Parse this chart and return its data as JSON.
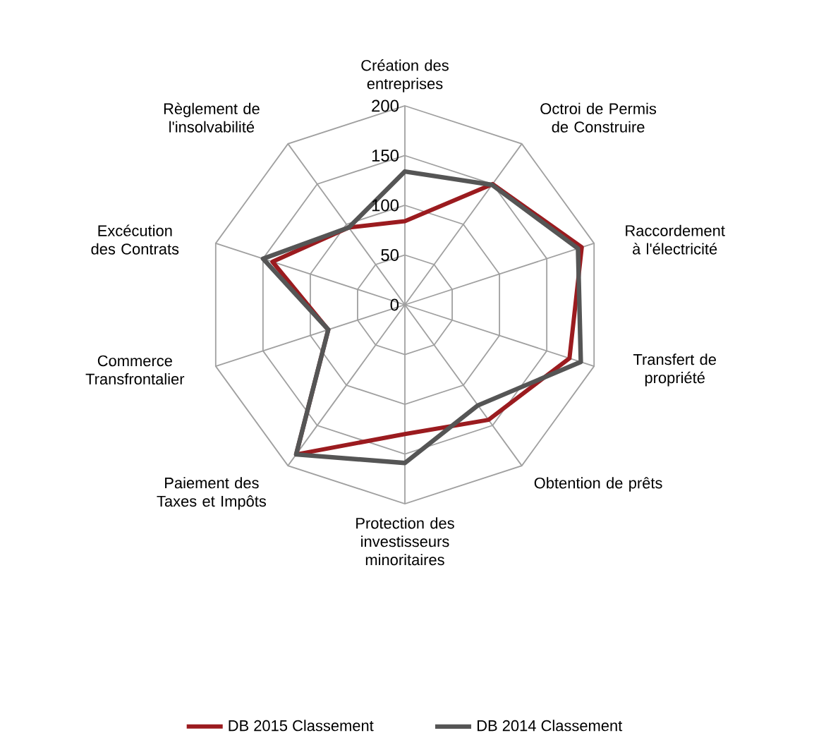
{
  "chart_data": {
    "type": "radar",
    "categories": [
      "Création des entreprises",
      "Octroi de Permis de Construire",
      "Raccordement à l'électricité",
      "Transfert de propriété",
      "Obtention de prêts",
      "Protection des investisseurs minoritaires",
      "Paiement des Taxes et Impôts",
      "Commerce Transfrontalier",
      "Excécution des Contrats",
      "Règlement de l'insolvabilité"
    ],
    "series": [
      {
        "name": "DB 2015 Classement",
        "color": "#9b1b1f",
        "values": [
          84,
          150,
          187,
          174,
          143,
          130,
          186,
          81,
          140,
          96
        ]
      },
      {
        "name": "DB 2014 Classement",
        "color": "#555555",
        "values": [
          134,
          149,
          183,
          186,
          125,
          159,
          186,
          81,
          150,
          96
        ]
      }
    ],
    "ylim": [
      0,
      200
    ],
    "yticks": [
      0,
      50,
      100,
      150,
      200
    ],
    "grid": true,
    "legend": "bottom"
  }
}
